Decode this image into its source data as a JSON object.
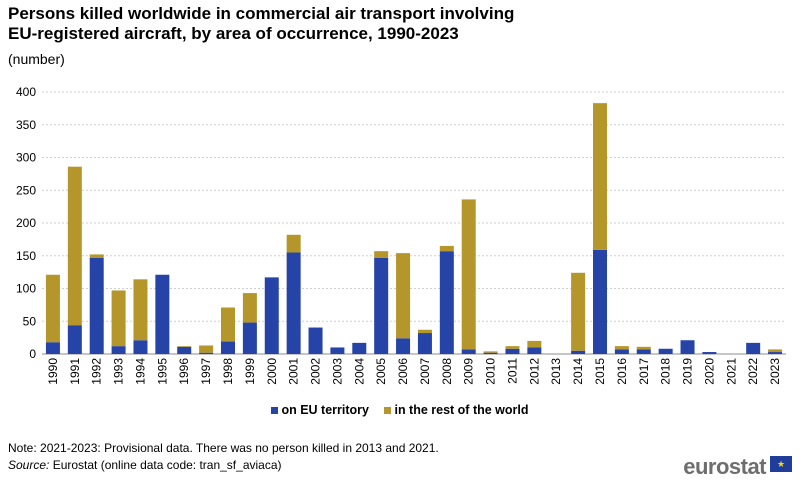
{
  "title": "Persons killed worldwide in commercial air transport involving EU-registered aircraft, by area of occurrence, 1990-2023",
  "subtitle": "(number)",
  "note": "Note: 2021-2023: Provisional data. There was no person killed in 2013 and 2021.",
  "source_label": "Source:",
  "source_text": " Eurostat (online data code: tran_sf_aviaca)",
  "brand": "eurostat",
  "colors": {
    "eu": "#2644a8",
    "rest": "#b5962a",
    "grid": "#cfcfcf",
    "axis": "#8c8c8c"
  },
  "chart_data": {
    "type": "bar",
    "stacked": true,
    "categories": [
      "1990",
      "1991",
      "1992",
      "1993",
      "1994",
      "1995",
      "1996",
      "1997",
      "1998",
      "1999",
      "2000",
      "2001",
      "2002",
      "2003",
      "2004",
      "2005",
      "2006",
      "2007",
      "2008",
      "2009",
      "2010",
      "2011",
      "2012",
      "2013",
      "2014",
      "2015",
      "2016",
      "2017",
      "2018",
      "2019",
      "2020",
      "2021",
      "2022",
      "2023"
    ],
    "series": [
      {
        "name": "on EU territory",
        "values": [
          18,
          44,
          147,
          12,
          21,
          121,
          11,
          2,
          19,
          48,
          117,
          155,
          40,
          10,
          17,
          147,
          24,
          32,
          157,
          7,
          2,
          8,
          10,
          0,
          5,
          159,
          7,
          7,
          8,
          21,
          3,
          0,
          17,
          3
        ]
      },
      {
        "name": "in the rest of the world",
        "values": [
          103,
          242,
          5,
          85,
          93,
          0,
          1,
          11,
          52,
          45,
          0,
          27,
          1,
          0,
          0,
          10,
          130,
          5,
          8,
          229,
          2,
          4,
          10,
          0,
          119,
          224,
          5,
          4,
          0,
          0,
          0,
          0,
          0,
          4
        ]
      }
    ],
    "yticks": [
      "0",
      "50",
      "100",
      "150",
      "200",
      "250",
      "300",
      "350",
      "400"
    ],
    "ylim": [
      0,
      400
    ],
    "grid": true,
    "legend": "bottom"
  }
}
